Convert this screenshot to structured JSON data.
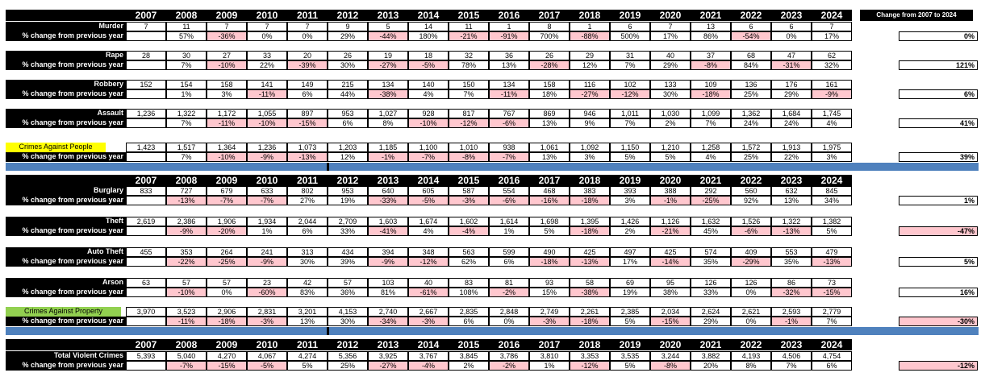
{
  "years": [
    "2007",
    "2008",
    "2009",
    "2010",
    "2011",
    "2012",
    "2013",
    "2014",
    "2015",
    "2016",
    "2017",
    "2018",
    "2019",
    "2020",
    "2021",
    "2022",
    "2023",
    "2024"
  ],
  "change_header": "Change from 2007 to 2024",
  "pct_label": "% change from previous year",
  "sections": [
    {
      "rows": [
        {
          "label": "Murder",
          "values": [
            "7",
            "11",
            "7",
            "7",
            "7",
            "9",
            "5",
            "14",
            "11",
            "1",
            "8",
            "1",
            "6",
            "7",
            "13",
            "6",
            "6",
            "7"
          ],
          "pct": [
            "",
            "57%",
            "-36%",
            "0%",
            "0%",
            "29%",
            "-44%",
            "180%",
            "-21%",
            "-91%",
            "700%",
            "-88%",
            "500%",
            "17%",
            "86%",
            "-54%",
            "0%",
            "17%"
          ],
          "change": "0%"
        },
        {
          "label": "Rape",
          "values": [
            "28",
            "30",
            "27",
            "33",
            "20",
            "26",
            "19",
            "18",
            "32",
            "36",
            "26",
            "29",
            "31",
            "40",
            "37",
            "68",
            "47",
            "62"
          ],
          "pct": [
            "",
            "7%",
            "-10%",
            "22%",
            "-39%",
            "30%",
            "-27%",
            "-5%",
            "78%",
            "13%",
            "-28%",
            "12%",
            "7%",
            "29%",
            "-8%",
            "84%",
            "-31%",
            "32%"
          ],
          "change": "121%"
        },
        {
          "label": "Robbery",
          "values": [
            "152",
            "154",
            "158",
            "141",
            "149",
            "215",
            "134",
            "140",
            "150",
            "134",
            "158",
            "116",
            "102",
            "133",
            "109",
            "136",
            "176",
            "161"
          ],
          "pct": [
            "",
            "1%",
            "3%",
            "-11%",
            "6%",
            "44%",
            "-38%",
            "4%",
            "7%",
            "-11%",
            "18%",
            "-27%",
            "-12%",
            "30%",
            "-18%",
            "25%",
            "29%",
            "-9%"
          ],
          "change": "6%"
        },
        {
          "label": "Assault",
          "values": [
            "1,236",
            "1,322",
            "1,172",
            "1,055",
            "897",
            "953",
            "1,027",
            "928",
            "817",
            "767",
            "869",
            "946",
            "1,011",
            "1,030",
            "1,099",
            "1,362",
            "1,684",
            "1,745"
          ],
          "pct": [
            "",
            "7%",
            "-11%",
            "-10%",
            "-15%",
            "6%",
            "8%",
            "-10%",
            "-12%",
            "-6%",
            "13%",
            "9%",
            "7%",
            "2%",
            "7%",
            "24%",
            "24%",
            "4%"
          ],
          "change": "41%"
        }
      ],
      "total": {
        "label": "Crimes Against People",
        "color": "yellow",
        "values": [
          "1,423",
          "1,517",
          "1,364",
          "1,236",
          "1,073",
          "1,203",
          "1,185",
          "1,100",
          "1,010",
          "938",
          "1,061",
          "1,092",
          "1,150",
          "1,210",
          "1,258",
          "1,572",
          "1,913",
          "1,975"
        ],
        "pct": [
          "",
          "7%",
          "-10%",
          "-9%",
          "-13%",
          "12%",
          "-1%",
          "-7%",
          "-8%",
          "-7%",
          "13%",
          "3%",
          "5%",
          "5%",
          "4%",
          "25%",
          "22%",
          "3%"
        ],
        "change": "39%"
      }
    },
    {
      "rows": [
        {
          "label": "Burglary",
          "values": [
            "833",
            "727",
            "679",
            "633",
            "802",
            "953",
            "640",
            "605",
            "587",
            "554",
            "468",
            "383",
            "393",
            "388",
            "292",
            "560",
            "632",
            "845"
          ],
          "pct": [
            "",
            "-13%",
            "-7%",
            "-7%",
            "27%",
            "19%",
            "-33%",
            "-5%",
            "-3%",
            "-6%",
            "-16%",
            "-18%",
            "3%",
            "-1%",
            "-25%",
            "92%",
            "13%",
            "34%"
          ],
          "change": "1%"
        },
        {
          "label": "Theft",
          "values": [
            "2,619",
            "2,386",
            "1,906",
            "1,934",
            "2,044",
            "2,709",
            "1,603",
            "1,674",
            "1,602",
            "1,614",
            "1,698",
            "1,395",
            "1,426",
            "1,126",
            "1,632",
            "1,526",
            "1,322",
            "1,382"
          ],
          "pct": [
            "",
            "-9%",
            "-20%",
            "1%",
            "6%",
            "33%",
            "-41%",
            "4%",
            "-4%",
            "1%",
            "5%",
            "-18%",
            "2%",
            "-21%",
            "45%",
            "-6%",
            "-13%",
            "5%"
          ],
          "change": "-47%"
        },
        {
          "label": "Auto Theft",
          "values": [
            "455",
            "353",
            "264",
            "241",
            "313",
            "434",
            "394",
            "348",
            "563",
            "599",
            "490",
            "425",
            "497",
            "425",
            "574",
            "409",
            "553",
            "479"
          ],
          "pct": [
            "",
            "-22%",
            "-25%",
            "-9%",
            "30%",
            "39%",
            "-9%",
            "-12%",
            "62%",
            "6%",
            "-18%",
            "-13%",
            "17%",
            "-14%",
            "35%",
            "-29%",
            "35%",
            "-13%"
          ],
          "change": "5%"
        },
        {
          "label": "Arson",
          "values": [
            "63",
            "57",
            "57",
            "23",
            "42",
            "57",
            "103",
            "40",
            "83",
            "81",
            "93",
            "58",
            "69",
            "95",
            "126",
            "126",
            "86",
            "73"
          ],
          "pct": [
            "",
            "-10%",
            "0%",
            "-60%",
            "83%",
            "36%",
            "81%",
            "-61%",
            "108%",
            "-2%",
            "15%",
            "-38%",
            "19%",
            "38%",
            "33%",
            "0%",
            "-32%",
            "-15%"
          ],
          "change": "16%"
        }
      ],
      "total": {
        "label": "Crimes Against Property",
        "color": "green",
        "values": [
          "3,970",
          "3,523",
          "2,906",
          "2,831",
          "3,201",
          "4,153",
          "2,740",
          "2,667",
          "2,835",
          "2,848",
          "2,749",
          "2,261",
          "2,385",
          "2,034",
          "2,624",
          "2,621",
          "2,593",
          "2,779"
        ],
        "pct": [
          "",
          "-11%",
          "-18%",
          "-3%",
          "13%",
          "30%",
          "-34%",
          "-3%",
          "6%",
          "0%",
          "-3%",
          "-18%",
          "5%",
          "-15%",
          "29%",
          "0%",
          "-1%",
          "7%"
        ],
        "change": "-30%"
      }
    },
    {
      "rows": [
        {
          "label": "Total Violent Crimes",
          "values": [
            "5,393",
            "5,040",
            "4,270",
            "4,067",
            "4,274",
            "5,356",
            "3,925",
            "3,767",
            "3,845",
            "3,786",
            "3,810",
            "3,353",
            "3,535",
            "3,244",
            "3,882",
            "4,193",
            "4,506",
            "4,754"
          ],
          "pct": [
            "",
            "-7%",
            "-15%",
            "-5%",
            "5%",
            "25%",
            "-27%",
            "-4%",
            "2%",
            "-2%",
            "1%",
            "-12%",
            "5%",
            "-8%",
            "20%",
            "8%",
            "7%",
            "6%"
          ],
          "change": "-12%"
        }
      ]
    }
  ],
  "colors": {
    "header": "#000000",
    "negative": "#ffc7ce",
    "yellow": "#ffff00",
    "green": "#92d050",
    "band": "#4f81bd"
  }
}
